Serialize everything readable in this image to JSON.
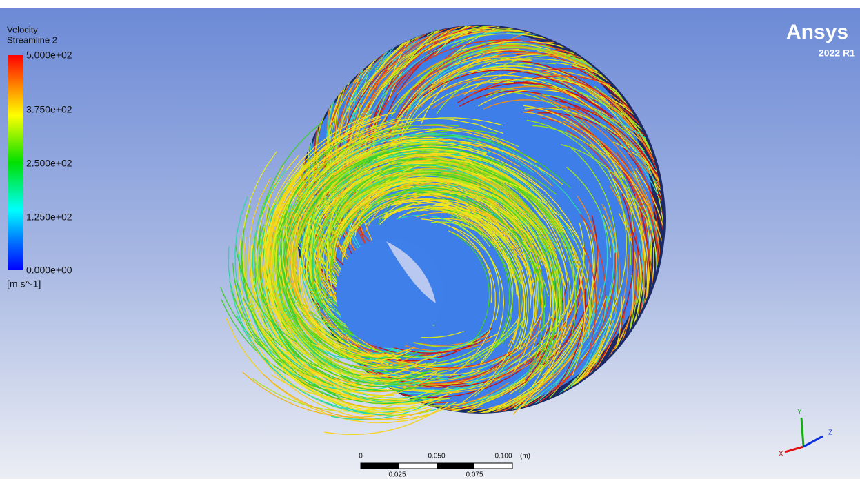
{
  "legend": {
    "title": "Velocity",
    "subtitle": "Streamline 2",
    "labels": [
      "5.000e+02",
      "3.750e+02",
      "2.500e+02",
      "1.250e+02",
      "0.000e+00"
    ],
    "unit": "[m s^-1]"
  },
  "logo": {
    "name": "Ansys",
    "version": "2022 R1"
  },
  "scale_bar": {
    "top_labels": [
      "0",
      "0.050",
      "0.100"
    ],
    "unit": "(m)",
    "bottom_labels": [
      "0.025",
      "0.075"
    ]
  },
  "axes_triad": {
    "x": "X",
    "y": "Y",
    "z": "Z"
  }
}
